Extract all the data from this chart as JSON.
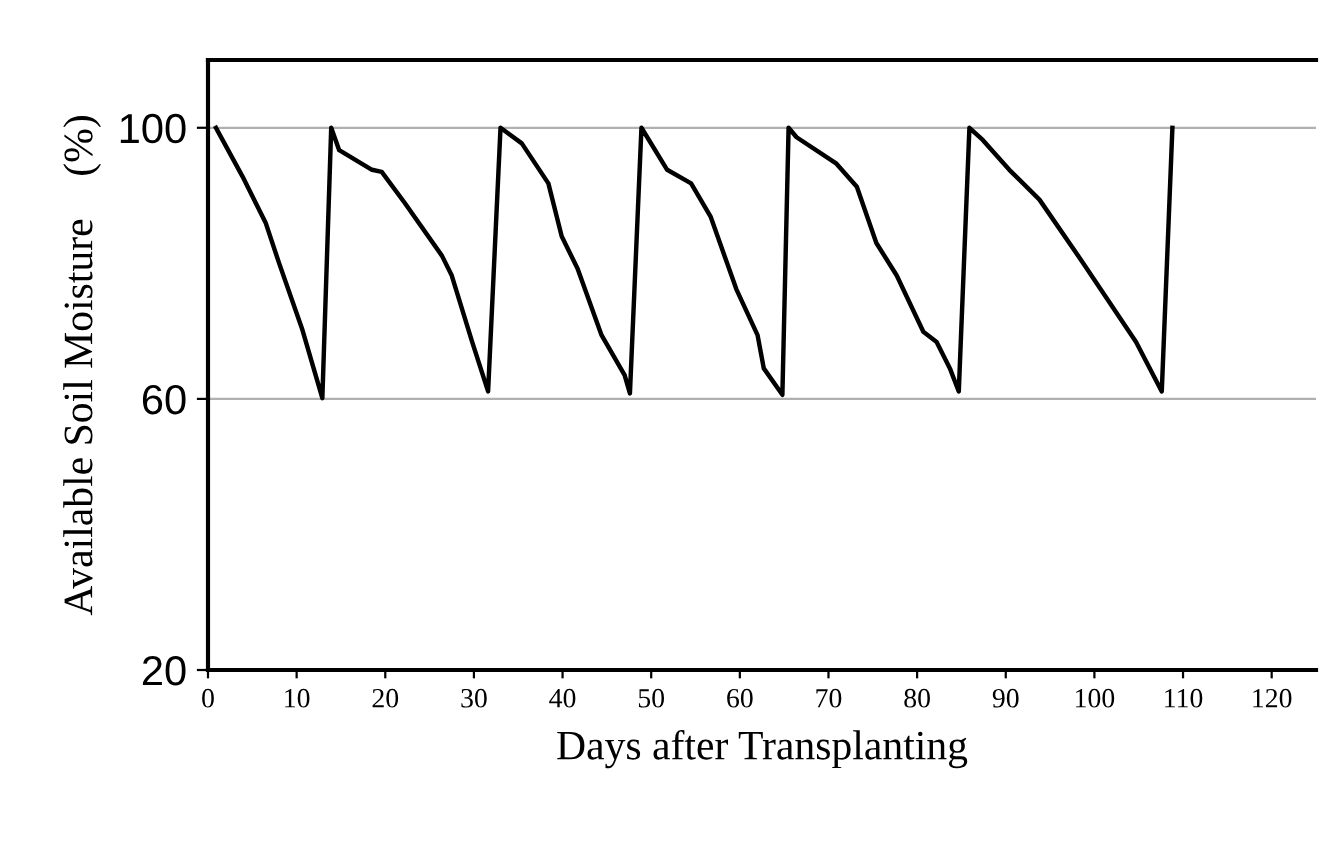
{
  "chart_data": {
    "type": "line",
    "xlabel": "Days after Transplanting",
    "ylabel": "Available Soil Moisture    (%)",
    "series": [
      {
        "color": "#000000",
        "x": [
          0.9,
          3.9,
          6.5,
          8.0,
          10.6,
          12.9,
          13.9,
          14.8,
          18.5,
          19.6,
          22.2,
          26.4,
          27.5,
          29.8,
          31.6,
          33.0,
          35.4,
          38.4,
          39.9,
          41.7,
          44.4,
          47.0,
          47.6,
          48.9,
          51.8,
          54.5,
          56.7,
          59.6,
          62.0,
          62.7,
          64.8,
          65.5,
          66.4,
          70.9,
          73.2,
          75.4,
          77.7,
          80.7,
          82.2,
          83.7,
          84.7,
          85.9,
          87.4,
          90.4,
          93.8,
          98.7,
          104.7,
          107.6,
          108.8
        ],
        "values": [
          100,
          92.8,
          86,
          80.1,
          70.4,
          60.1,
          100,
          96.7,
          93.8,
          93.5,
          88.9,
          81.1,
          78.2,
          68.4,
          61.1,
          100,
          97.7,
          91.8,
          84,
          79.2,
          69.4,
          63.5,
          60.8,
          100,
          93.8,
          91.8,
          86.9,
          76.2,
          69.4,
          64.5,
          60.6,
          100,
          98.6,
          94.7,
          91.3,
          83,
          78.2,
          69.9,
          68.4,
          64.5,
          61.1,
          100,
          98.2,
          93.8,
          89.4,
          80.1,
          68.4,
          61.1,
          100
        ]
      }
    ],
    "xlim": [
      0,
      125
    ],
    "xticks": [
      0,
      10,
      20,
      30,
      40,
      50,
      60,
      70,
      80,
      90,
      100,
      110,
      120
    ],
    "ylim": [
      20,
      110
    ],
    "yticks": [
      20,
      60,
      100
    ],
    "grid": "y",
    "marker": "none",
    "line_style": "solid",
    "legend": false
  }
}
